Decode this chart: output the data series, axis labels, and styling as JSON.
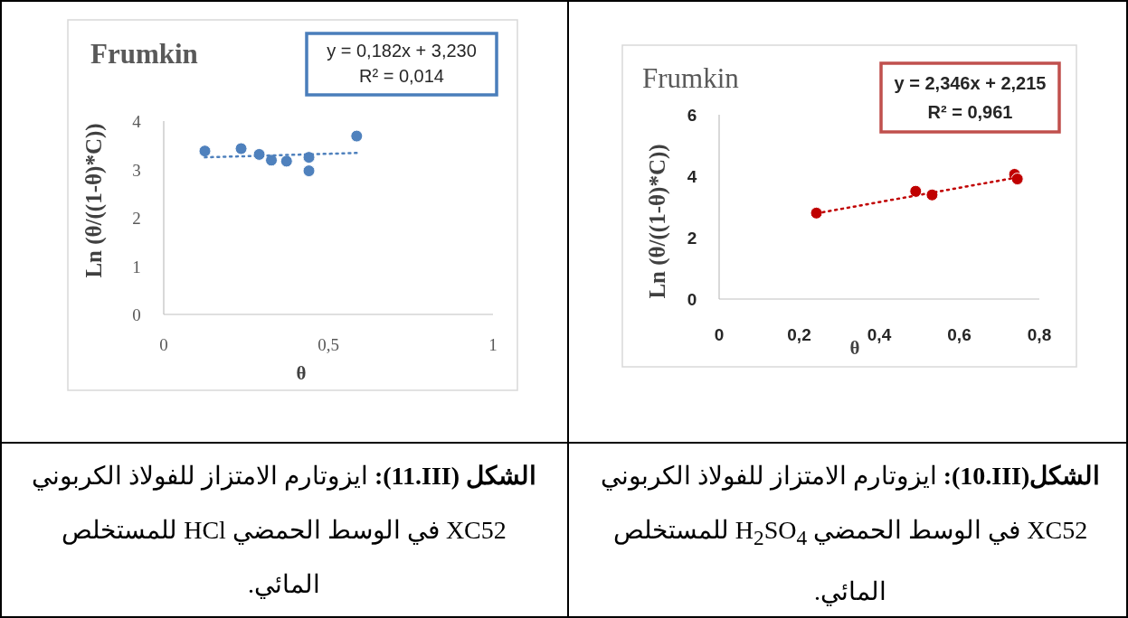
{
  "chart_data": [
    {
      "type": "scatter",
      "title": "Frumkin",
      "xlabel": "θ",
      "ylabel": "Ln (θ/((1-θ)*C))",
      "xlim": [
        0,
        1
      ],
      "ylim": [
        0,
        4
      ],
      "xticks": [
        {
          "value": 0,
          "label": "0"
        },
        {
          "value": 0.5,
          "label": "0,5"
        },
        1
      ],
      "yticks": [
        {
          "value": 0,
          "label": "0"
        },
        1,
        2,
        3,
        4
      ],
      "grid": false,
      "marker": "circle",
      "series": [
        {
          "color": "#4f81bd",
          "x": [
            0.125,
            0.235,
            0.29,
            0.327,
            0.373,
            0.441,
            0.441,
            0.586
          ],
          "values": [
            3.38,
            3.43,
            3.31,
            3.19,
            3.17,
            3.25,
            2.97,
            3.69
          ]
        },
        {
          "type": "line",
          "color": "#4f81bd",
          "line_style": "dotted",
          "marker": "none",
          "x": [
            0.125,
            0.586
          ],
          "values": [
            3.25,
            3.34
          ]
        }
      ],
      "annotations": [
        "y = 0,182x + 3,230",
        "R² = 0,014",
        "**الشكل (11.III):** ايزوتارم الامتزاز للفولاذ الكربوني XC52 في الوسط الحمضي HCl للمستخلص المائي."
      ]
    },
    {
      "type": "scatter",
      "title": "Frumkin",
      "xlabel": "θ",
      "ylabel": "Ln (θ/((1-θ)*C))",
      "xlim": [
        0,
        0.8
      ],
      "ylim": [
        0,
        6
      ],
      "xticks": [
        {
          "value": 0,
          "label": "0"
        },
        {
          "value": 0.2,
          "label": "0,2"
        },
        {
          "value": 0.4,
          "label": "0,4"
        },
        {
          "value": 0.6,
          "label": "0,6"
        },
        {
          "value": 0.8,
          "label": "0,8"
        }
      ],
      "yticks": [
        {
          "value": 0,
          "label": "0"
        },
        2,
        4,
        6
      ],
      "grid": false,
      "marker": "circle",
      "series": [
        {
          "color": "#c00000",
          "x": [
            0.243,
            0.491,
            0.532,
            0.738,
            0.745
          ],
          "values": [
            2.8,
            3.51,
            3.39,
            4.06,
            3.91
          ]
        },
        {
          "type": "line",
          "color": "#c00000",
          "line_style": "dotted",
          "marker": "none",
          "x": [
            0.243,
            0.745
          ],
          "values": [
            2.79,
            3.96
          ]
        }
      ],
      "annotations": [
        "y = 2,346x + 2,215",
        "R² = 0,961",
        "**الشكل(10.III):** ايزوتارم الامتزاز للفولاذ الكربوني XC52 في الوسط الحمضي H$_{2}$SO$_{4}$ للمستخلص المائي."
      ]
    }
  ]
}
